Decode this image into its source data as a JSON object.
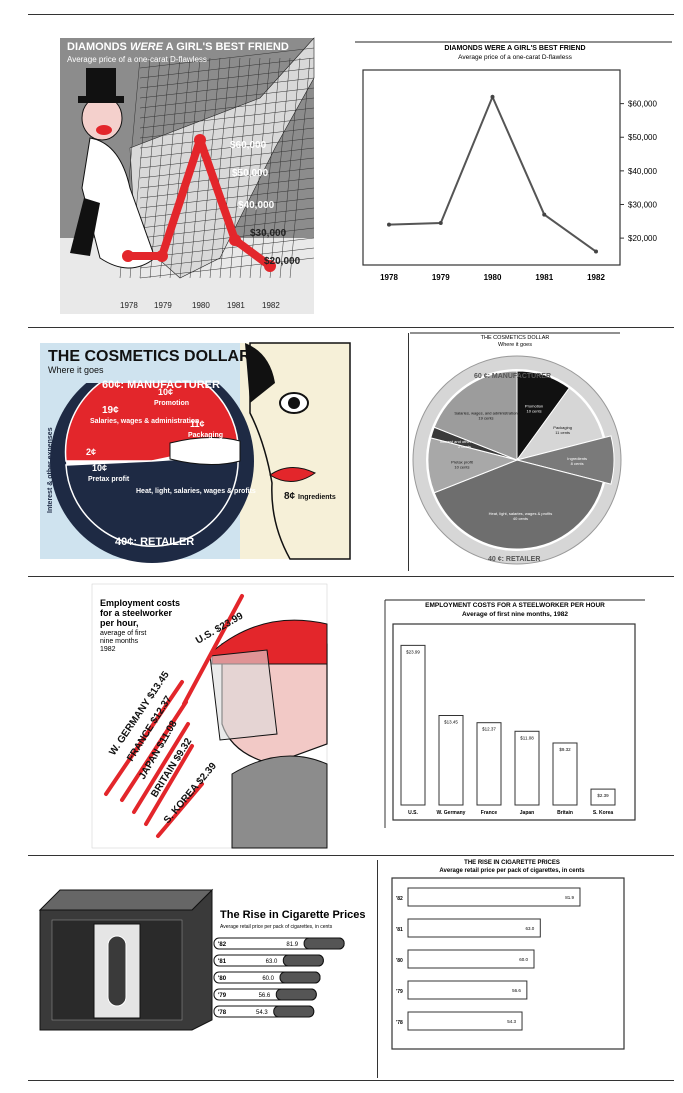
{
  "panel1": {
    "left": {
      "title": "DIAMONDS WERE A GIRL'S BEST FRIEND",
      "title_pre": "DIAMONDS ",
      "title_em": "WERE",
      "title_post": " A GIRL'S BEST FRIEND",
      "subtitle": "Average price of a one-carat D-flawless",
      "price_labels": [
        "$60,000",
        "$50,000",
        "$40,000",
        "$30,000",
        "$20,000"
      ],
      "x_labels": [
        "1978",
        "1979",
        "1980",
        "1981",
        "1982"
      ]
    },
    "right": {
      "chart_data": {
        "type": "line",
        "title": "DIAMONDS WERE A GIRL'S BEST FRIEND",
        "subtitle": "Average price of a one-carat D-flawless",
        "x": [
          "1978",
          "1979",
          "1980",
          "1981",
          "1982"
        ],
        "values": [
          24000,
          24500,
          62000,
          27000,
          16000
        ],
        "yticks": [
          "$20,000",
          "$30,000",
          "$40,000",
          "$50,000",
          "$60,000"
        ],
        "ytick_values": [
          20000,
          30000,
          40000,
          50000,
          60000
        ],
        "ylim": [
          12000,
          70000
        ]
      }
    }
  },
  "panel2": {
    "left": {
      "title": "THE COSMETICS DOLLAR",
      "subtitle": "Where it goes",
      "manufacturer_label": "60¢: MANUFACTURER",
      "retailer_label": "40¢: RETAILER",
      "side_label": "Interest & other expenses",
      "labels": {
        "salaries_value": "19¢",
        "salaries_text": "Salaries, wages & administration",
        "promotion_value": "10¢",
        "promotion_text": "Promotion",
        "packaging_value": "11¢",
        "packaging_text": "Packaging",
        "interest_value": "2¢",
        "pretax_value": "10¢",
        "pretax_text": "Pretax profit",
        "heat_text": "Heat, light, salaries, wages & profits",
        "ingredients_value": "8¢",
        "ingredients_text": "Ingredients"
      }
    },
    "right": {
      "chart_data": {
        "type": "pie",
        "title": "THE COSMETICS DOLLAR",
        "subtitle": "Where it goes",
        "ring_top": "60 ¢: MANUFACTURER",
        "ring_bottom": "40 ¢: RETAILER",
        "slices": [
          {
            "name": "Promotion",
            "value": 10,
            "label": "10 cents",
            "color": "#111111"
          },
          {
            "name": "Packaging",
            "value": 11,
            "label": "11 cents",
            "color": "#d6d6d6"
          },
          {
            "name": "Ingredients",
            "value": 8,
            "label": "8 cents",
            "color": "#7a7a7a"
          },
          {
            "name": "Heat, light, salaries, wages & profits",
            "value": 40,
            "label": "40 cents",
            "color": "#6e6e6e"
          },
          {
            "name": "Pretax profit",
            "value": 10,
            "label": "10 cents",
            "color": "#a8a8a8"
          },
          {
            "name": "Interest and other expenses",
            "value": 2,
            "label": "2 cents",
            "color": "#3a3a3a"
          },
          {
            "name": "Salaries, wages, and administration",
            "value": 19,
            "label": "19 cents",
            "color": "#9c9c9c"
          }
        ]
      }
    }
  },
  "panel3": {
    "left": {
      "title": "Employment costs for a steelworker per hour,",
      "title_lines": [
        "Employment costs",
        "for a steelworker",
        "per hour,"
      ],
      "subtitle_lines": [
        "average of first",
        "nine months",
        "1982"
      ],
      "labels": [
        "U.S. $23.99",
        "W. GERMANY $13.45",
        "FRANCE $12.37",
        "JAPAN $11.08",
        "BRITAIN $9.32",
        "S. KOREA $2.39"
      ]
    },
    "right": {
      "chart_data": {
        "type": "bar",
        "title": "EMPLOYMENT COSTS FOR A STEELWORKER PER HOUR",
        "subtitle": "Average of first nine months, 1982",
        "categories": [
          "U.S.",
          "W. Germany",
          "France",
          "Japan",
          "Britain",
          "S. Korea"
        ],
        "values": [
          23.99,
          13.45,
          12.37,
          11.08,
          9.32,
          2.39
        ],
        "value_labels": [
          "$23.99",
          "$13.45",
          "$12.37",
          "$11.08",
          "$9.32",
          "$2.39"
        ],
        "ylim": [
          0,
          26
        ]
      }
    }
  },
  "panel4": {
    "left": {
      "title": "The Rise in Cigarette Prices",
      "subtitle": "Average retail price per pack of cigarettes, in cents",
      "years": [
        "'82",
        "'81",
        "'80",
        "'79",
        "'78"
      ],
      "values": [
        "81.9",
        "63.0",
        "60.0",
        "56.6",
        "54.3"
      ]
    },
    "right": {
      "chart_data": {
        "type": "bar",
        "orientation": "horizontal",
        "title": "THE RISE IN CIGARETTE PRICES",
        "subtitle": "Average retail price per pack of cigarettes, in cents",
        "categories": [
          "'82",
          "'81",
          "'80",
          "'79",
          "'78"
        ],
        "values": [
          81.9,
          63.0,
          60.0,
          56.6,
          54.3
        ],
        "value_labels": [
          "81.9",
          "63.0",
          "60.0",
          "56.6",
          "54.3"
        ],
        "xlim": [
          0,
          100
        ]
      }
    }
  },
  "colors": {
    "red": "#e3262b",
    "pink": "#f2c9c6",
    "grey_bg": "#8a8a8a",
    "navy": "#1e2a44",
    "light_blue": "#cfe3ef",
    "cream": "#f6f0d8"
  }
}
